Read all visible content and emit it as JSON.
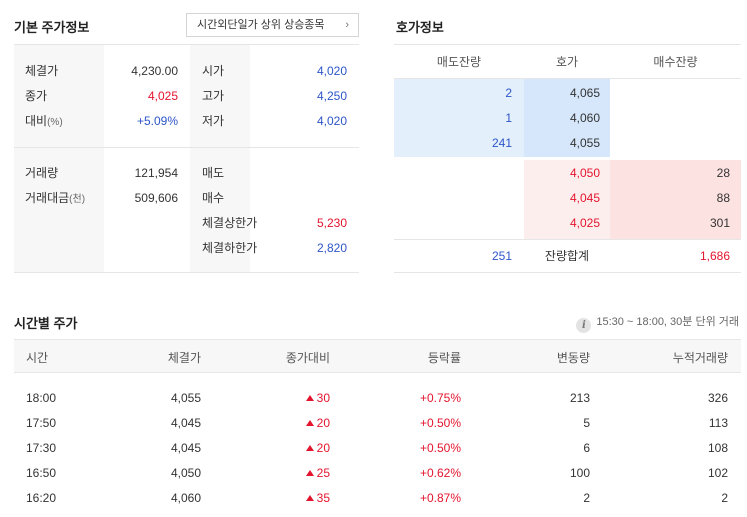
{
  "basic": {
    "title": "기본 주가정보",
    "after_hours_button": "시간외단일가 상위 상승종목",
    "left_top": [
      {
        "label": "체결가",
        "value": "4,230.00"
      },
      {
        "label": "종가",
        "value": "4,025"
      },
      {
        "label": "대비",
        "label_small": "(%)",
        "value": "+5.09%"
      }
    ],
    "right_top": [
      {
        "label": "시가",
        "value": "4,020"
      },
      {
        "label": "고가",
        "value": "4,250"
      },
      {
        "label": "저가",
        "value": "4,020"
      }
    ],
    "left_bottom": [
      {
        "label": "거래량",
        "value": "121,954"
      },
      {
        "label": "거래대금",
        "label_small": "(천)",
        "value": "509,606"
      }
    ],
    "right_bottom": [
      {
        "label": "매도",
        "value": ""
      },
      {
        "label": "매수",
        "value": ""
      },
      {
        "label": "체결상한가",
        "value": "5,230"
      },
      {
        "label": "체결하한가",
        "value": "2,820"
      }
    ]
  },
  "orderbook": {
    "title": "호가정보",
    "headers": [
      "매도잔량",
      "호가",
      "매수잔량"
    ],
    "asks": [
      {
        "qty": "2",
        "price": "4,065"
      },
      {
        "qty": "1",
        "price": "4,060"
      },
      {
        "qty": "241",
        "price": "4,055"
      }
    ],
    "bids": [
      {
        "price": "4,050",
        "qty": "28"
      },
      {
        "price": "4,045",
        "qty": "88"
      },
      {
        "price": "4,025",
        "qty": "301"
      }
    ],
    "total_label": "잔량합계",
    "total_ask": "251",
    "total_bid": "1,686"
  },
  "time_table": {
    "title": "시간별 주가",
    "note": "15:30 ~ 18:00, 30분 단위 거래",
    "info_icon": "i",
    "headers": [
      "시간",
      "체결가",
      "종가대비",
      "등락률",
      "변동량",
      "누적거래량"
    ],
    "rows": [
      {
        "time": "18:00",
        "price": "4,055",
        "change": "30",
        "rate": "+0.75%",
        "vol": "213",
        "cum": "326"
      },
      {
        "time": "17:50",
        "price": "4,045",
        "change": "20",
        "rate": "+0.50%",
        "vol": "5",
        "cum": "113"
      },
      {
        "time": "17:30",
        "price": "4,045",
        "change": "20",
        "rate": "+0.50%",
        "vol": "6",
        "cum": "108"
      },
      {
        "time": "16:50",
        "price": "4,050",
        "change": "25",
        "rate": "+0.62%",
        "vol": "100",
        "cum": "102"
      },
      {
        "time": "16:20",
        "price": "4,060",
        "change": "35",
        "rate": "+0.87%",
        "vol": "2",
        "cum": "2"
      }
    ]
  },
  "colors": {
    "up": "#e3142d",
    "down": "#2d55c8",
    "ask_bg": "#e4effc",
    "ask_price_bg": "#d6e7fb",
    "bid_bg": "#fdeeee",
    "bid_qty_bg": "#fde2e2"
  }
}
